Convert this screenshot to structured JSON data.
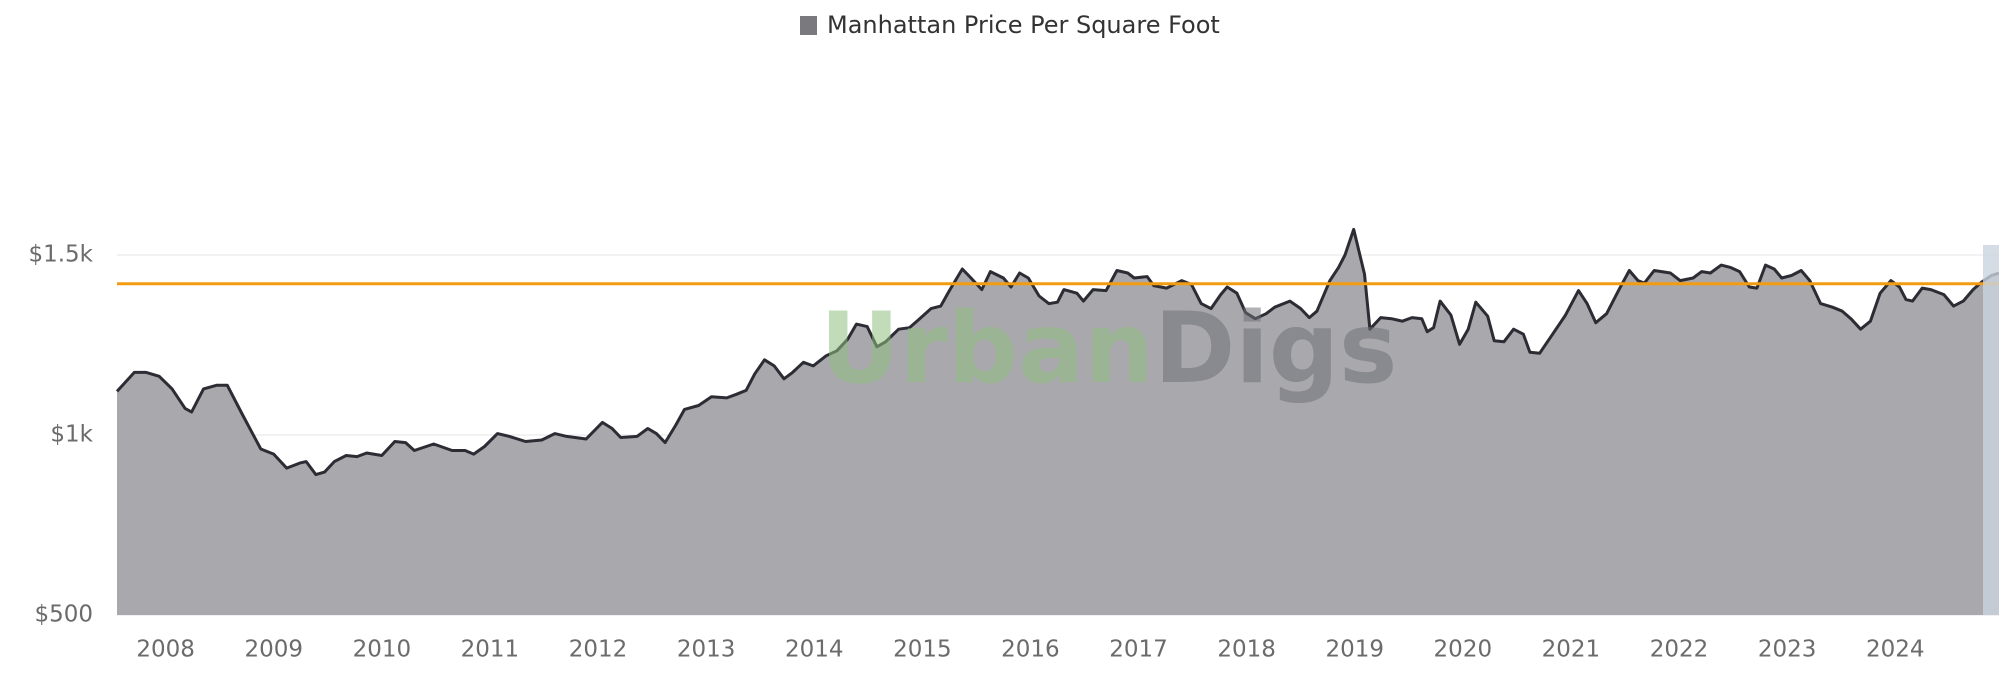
{
  "chart_data": {
    "type": "area",
    "legend": "Manhattan Price Per Square Foot",
    "watermark": [
      "Urban",
      "Digs"
    ],
    "series": [
      {
        "name": "Manhattan Price Per Square Foot",
        "color": "#2c2c34",
        "fill": "#a9a8ad",
        "x": [
          2007.55,
          2007.71,
          2007.82,
          2007.94,
          2008.06,
          2008.18,
          2008.24,
          2008.35,
          2008.47,
          2008.57,
          2008.71,
          2008.88,
          2009.0,
          2009.12,
          2009.24,
          2009.3,
          2009.39,
          2009.47,
          2009.56,
          2009.67,
          2009.77,
          2009.86,
          2010.0,
          2010.12,
          2010.22,
          2010.3,
          2010.48,
          2010.65,
          2010.77,
          2010.85,
          2010.95,
          2011.07,
          2011.18,
          2011.33,
          2011.48,
          2011.6,
          2011.71,
          2011.89,
          2012.04,
          2012.13,
          2012.21,
          2012.36,
          2012.46,
          2012.54,
          2012.62,
          2012.72,
          2012.8,
          2012.93,
          2013.05,
          2013.19,
          2013.28,
          2013.37,
          2013.45,
          2013.54,
          2013.63,
          2013.72,
          2013.8,
          2013.9,
          2013.99,
          2014.11,
          2014.21,
          2014.31,
          2014.39,
          2014.49,
          2014.58,
          2014.66,
          2014.78,
          2014.88,
          2014.96,
          2015.08,
          2015.17,
          2015.25,
          2015.37,
          2015.45,
          2015.55,
          2015.63,
          2015.75,
          2015.82,
          2015.9,
          2015.98,
          2016.08,
          2016.17,
          2016.25,
          2016.31,
          2016.43,
          2016.49,
          2016.58,
          2016.7,
          2016.8,
          2016.9,
          2016.96,
          2017.08,
          2017.14,
          2017.26,
          2017.4,
          2017.49,
          2017.58,
          2017.67,
          2017.76,
          2017.82,
          2017.91,
          2017.99,
          2018.08,
          2018.18,
          2018.26,
          2018.4,
          2018.5,
          2018.58,
          2018.65,
          2018.77,
          2018.85,
          2018.91,
          2018.99,
          2019.09,
          2019.14,
          2019.24,
          2019.34,
          2019.44,
          2019.53,
          2019.62,
          2019.67,
          2019.73,
          2019.79,
          2019.89,
          2019.97,
          2020.05,
          2020.12,
          2020.23,
          2020.29,
          2020.38,
          2020.47,
          2020.56,
          2020.62,
          2020.71,
          2020.83,
          2020.95,
          2021.07,
          2021.15,
          2021.23,
          2021.33,
          2021.44,
          2021.54,
          2021.62,
          2021.68,
          2021.77,
          2021.92,
          2022.01,
          2022.13,
          2022.21,
          2022.29,
          2022.39,
          2022.48,
          2022.56,
          2022.65,
          2022.72,
          2022.8,
          2022.88,
          2022.95,
          2023.04,
          2023.13,
          2023.21,
          2023.31,
          2023.42,
          2023.51,
          2023.59,
          2023.68,
          2023.77,
          2023.86,
          2023.96,
          2024.04,
          2024.1,
          2024.16,
          2024.25,
          2024.33,
          2024.45,
          2024.54,
          2024.63,
          2024.72,
          2024.8,
          2024.89,
          2024.96
        ],
        "values": [
          1121,
          1174,
          1174,
          1163,
          1128,
          1074,
          1064,
          1128,
          1138,
          1138,
          1057,
          961,
          947,
          908,
          922,
          926,
          890,
          897,
          926,
          943,
          940,
          950,
          943,
          982,
          979,
          957,
          975,
          957,
          957,
          947,
          968,
          1004,
          996,
          982,
          986,
          1004,
          996,
          989,
          1035,
          1018,
          993,
          996,
          1018,
          1004,
          979,
          1028,
          1071,
          1082,
          1106,
          1103,
          1113,
          1124,
          1170,
          1209,
          1192,
          1156,
          1174,
          1202,
          1192,
          1220,
          1234,
          1266,
          1308,
          1301,
          1245,
          1259,
          1294,
          1298,
          1319,
          1351,
          1358,
          1401,
          1461,
          1436,
          1404,
          1454,
          1436,
          1411,
          1450,
          1436,
          1386,
          1365,
          1369,
          1404,
          1394,
          1372,
          1404,
          1401,
          1457,
          1450,
          1436,
          1440,
          1415,
          1408,
          1429,
          1418,
          1365,
          1351,
          1390,
          1411,
          1394,
          1340,
          1323,
          1337,
          1355,
          1372,
          1351,
          1326,
          1344,
          1429,
          1465,
          1500,
          1571,
          1447,
          1294,
          1326,
          1323,
          1316,
          1326,
          1323,
          1287,
          1298,
          1372,
          1333,
          1252,
          1294,
          1369,
          1330,
          1262,
          1259,
          1294,
          1280,
          1230,
          1227,
          1280,
          1333,
          1401,
          1365,
          1312,
          1337,
          1401,
          1457,
          1429,
          1422,
          1457,
          1450,
          1429,
          1436,
          1454,
          1450,
          1472,
          1465,
          1454,
          1411,
          1408,
          1472,
          1461,
          1436,
          1443,
          1457,
          1429,
          1365,
          1355,
          1344,
          1323,
          1294,
          1316,
          1394,
          1429,
          1411,
          1376,
          1372,
          1408,
          1404,
          1390,
          1358,
          1372,
          1404,
          1425,
          1443,
          1450
        ]
      }
    ],
    "reference_line": {
      "value": 1420,
      "color": "#f39c12"
    },
    "xlim": [
      2007.55,
      2024.96
    ],
    "xticks": [
      2008,
      2009,
      2010,
      2011,
      2012,
      2013,
      2014,
      2015,
      2016,
      2017,
      2018,
      2019,
      2020,
      2021,
      2022,
      2023,
      2024
    ],
    "ylim": [
      500,
      2000
    ],
    "yticks": [
      {
        "value": 500,
        "label": "$500"
      },
      {
        "value": 1000,
        "label": "$1k"
      },
      {
        "value": 1500,
        "label": "$1.5k"
      }
    ],
    "grid": true
  }
}
